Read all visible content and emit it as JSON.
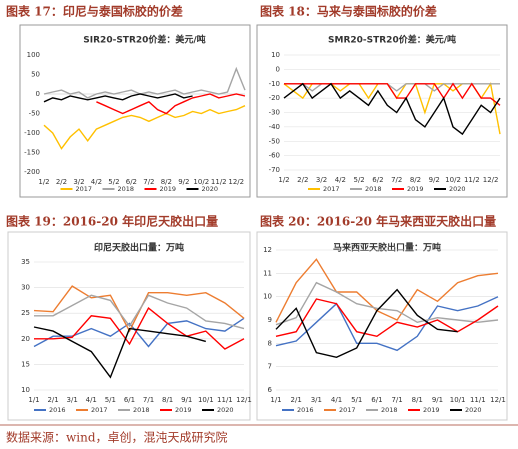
{
  "captions": [
    "图表 17：印尼与泰国标胶的价差",
    "图表 18：马来与泰国标胶的价差",
    "图表 19：2016-20 年印尼天胶出口量",
    "图表 20：2016-20 年马来西亚天胶出口量"
  ],
  "source": "数据来源：wind，卓创，混沌天成研究院",
  "chart_data": [
    {
      "type": "line",
      "title": "SIR20-STR20价差：美元/吨",
      "grid": false,
      "categories": [
        "1/2",
        null,
        "2/2",
        null,
        "3/2",
        null,
        "4/2",
        null,
        "5/2",
        null,
        "6/2",
        null,
        "7/2",
        null,
        "8/2",
        null,
        "9/2",
        null,
        "10/2",
        null,
        "11/2",
        null,
        "12/2",
        null
      ],
      "ylim": [
        -200,
        100
      ],
      "yticks": [
        -200,
        -150,
        -100,
        -50,
        0,
        50,
        100
      ],
      "series": [
        {
          "name": "2017",
          "color": "#ffc000",
          "values": [
            -80,
            -100,
            -140,
            -110,
            -90,
            -120,
            -90,
            -80,
            -70,
            -60,
            -55,
            -60,
            -70,
            -60,
            -50,
            -60,
            -55,
            -45,
            -50,
            -40,
            -50,
            -45,
            -40,
            -30
          ]
        },
        {
          "name": "2018",
          "color": "#a5a5a5",
          "values": [
            0,
            5,
            10,
            0,
            5,
            -10,
            0,
            5,
            0,
            5,
            10,
            0,
            5,
            0,
            5,
            10,
            0,
            5,
            10,
            5,
            0,
            5,
            65,
            10
          ]
        },
        {
          "name": "2019",
          "color": "#ff0000",
          "values": [
            null,
            null,
            null,
            null,
            null,
            null,
            -20,
            -30,
            -40,
            -50,
            -40,
            -30,
            -20,
            -40,
            -50,
            -30,
            -20,
            -10,
            -5,
            0,
            -10,
            -5,
            0,
            -5
          ]
        },
        {
          "name": "2020",
          "color": "#000000",
          "values": [
            -20,
            -10,
            -15,
            -5,
            -10,
            -15,
            -10,
            -5,
            -10,
            -15,
            -5,
            0,
            -5,
            -10,
            -5,
            0,
            -10,
            -5,
            null,
            null,
            null,
            null,
            null,
            null
          ]
        }
      ]
    },
    {
      "type": "line",
      "title": "SMR20-STR20价差：美元/吨",
      "grid": true,
      "categories": [
        "1/2",
        null,
        "2/2",
        null,
        "3/2",
        null,
        "4/2",
        null,
        "5/2",
        null,
        "6/2",
        null,
        "7/2",
        null,
        "8/2",
        null,
        "9/2",
        null,
        "10/2",
        null,
        "11/2",
        null,
        "12/2",
        null
      ],
      "ylim": [
        -70,
        10
      ],
      "yticks": [
        -70,
        -60,
        -50,
        -40,
        -30,
        -20,
        -10,
        0,
        10
      ],
      "series": [
        {
          "name": "2017",
          "color": "#ffc000",
          "values": [
            -10,
            -15,
            -20,
            -10,
            -10,
            -10,
            -15,
            -10,
            -10,
            -20,
            -10,
            -10,
            -20,
            -10,
            -10,
            -30,
            -10,
            -10,
            -15,
            -10,
            -10,
            -20,
            -10,
            -45
          ]
        },
        {
          "name": "2018",
          "color": "#a5a5a5",
          "values": [
            -10,
            -10,
            -10,
            -15,
            -10,
            -10,
            -10,
            -10,
            -10,
            -10,
            -10,
            -10,
            -15,
            -10,
            -10,
            -10,
            -15,
            -10,
            -10,
            -10,
            -10,
            -10,
            -10,
            -10
          ]
        },
        {
          "name": "2019",
          "color": "#ff0000",
          "values": [
            -10,
            -10,
            -10,
            -10,
            -10,
            -10,
            -10,
            -10,
            -10,
            -10,
            -10,
            -10,
            -20,
            -20,
            -10,
            -10,
            -10,
            -20,
            -10,
            -20,
            -10,
            -20,
            -20,
            -25
          ]
        },
        {
          "name": "2020",
          "color": "#000000",
          "values": [
            -20,
            -15,
            -10,
            -20,
            -15,
            -10,
            -20,
            -15,
            -20,
            -25,
            -15,
            -25,
            -30,
            -20,
            -35,
            -40,
            -30,
            -20,
            -40,
            -45,
            -35,
            -25,
            -30,
            -20
          ]
        }
      ]
    },
    {
      "type": "line",
      "title": "印尼天胶出口量：万吨",
      "grid": true,
      "categories": [
        "1/1",
        "2/1",
        "3/1",
        "4/1",
        "5/1",
        "6/1",
        "7/1",
        "8/1",
        "9/1",
        "10/1",
        "11/1",
        "12/1"
      ],
      "ylim": [
        10,
        35
      ],
      "yticks": [
        10,
        15,
        20,
        25,
        30,
        35
      ],
      "series": [
        {
          "name": "2016",
          "color": "#4472c4",
          "values": [
            18.5,
            20.5,
            20.5,
            22,
            20.5,
            23,
            18.5,
            23,
            23.5,
            22,
            21.5,
            24
          ]
        },
        {
          "name": "2017",
          "color": "#ed7d31",
          "values": [
            25.5,
            25.3,
            30.3,
            28,
            28.5,
            21.5,
            29,
            29,
            28.5,
            29,
            27,
            24
          ]
        },
        {
          "name": "2018",
          "color": "#a5a5a5",
          "values": [
            24.5,
            24.5,
            26.5,
            28.5,
            27.5,
            22.5,
            28.5,
            27,
            26,
            23.5,
            23,
            22
          ]
        },
        {
          "name": "2019",
          "color": "#ff0000",
          "values": [
            20,
            20,
            20.3,
            24.5,
            24,
            19,
            26,
            23,
            20.5,
            21.5,
            18,
            20
          ]
        },
        {
          "name": "2020",
          "color": "#000000",
          "values": [
            22.3,
            21.5,
            19.5,
            17.5,
            12.5,
            22,
            21.5,
            21,
            20.5,
            19.5,
            null,
            null
          ]
        }
      ]
    },
    {
      "type": "line",
      "title": "马来西亚天胶出口量：万吨",
      "grid": true,
      "categories": [
        "1/1",
        "2/1",
        "3/1",
        "4/1",
        "5/1",
        "6/1",
        "7/1",
        "8/1",
        "9/1",
        "10/1",
        "11/1",
        "12/1"
      ],
      "ylim": [
        6,
        12
      ],
      "yticks": [
        6,
        7,
        8,
        9,
        10,
        11,
        12
      ],
      "series": [
        {
          "name": "2016",
          "color": "#4472c4",
          "values": [
            7.9,
            8.1,
            8.9,
            9.7,
            8.0,
            8.0,
            7.7,
            8.3,
            9.6,
            9.4,
            9.6,
            10.0
          ]
        },
        {
          "name": "2017",
          "color": "#ed7d31",
          "values": [
            8.9,
            10.6,
            11.6,
            10.2,
            10.2,
            9.4,
            9.0,
            10.3,
            9.8,
            10.6,
            10.9,
            11.0
          ]
        },
        {
          "name": "2018",
          "color": "#a5a5a5",
          "values": [
            8.8,
            9.1,
            10.6,
            10.2,
            9.7,
            9.5,
            9.4,
            8.9,
            9.1,
            9.0,
            8.9,
            9.0
          ]
        },
        {
          "name": "2019",
          "color": "#ff0000",
          "values": [
            8.3,
            8.5,
            9.9,
            9.7,
            8.5,
            8.3,
            8.9,
            8.7,
            9.0,
            8.5,
            9.0,
            9.6
          ]
        },
        {
          "name": "2020",
          "color": "#000000",
          "values": [
            8.6,
            9.5,
            7.6,
            7.4,
            7.8,
            9.4,
            10.3,
            9.2,
            8.6,
            8.5,
            null,
            null
          ]
        }
      ]
    }
  ]
}
